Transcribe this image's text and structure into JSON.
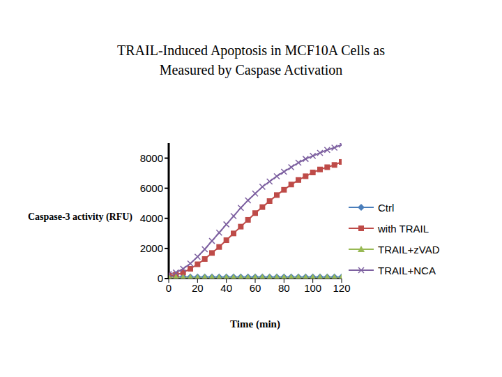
{
  "chart_data": {
    "type": "line",
    "title": "TRAIL-Induced Apoptosis in MCF10A Cells as Measured by Caspase Activation",
    "x_label": "Time (min)",
    "y_label": "Caspase-3 activity (RFU)",
    "x": [
      0,
      5,
      10,
      15,
      20,
      25,
      30,
      35,
      40,
      45,
      50,
      55,
      60,
      65,
      70,
      75,
      80,
      85,
      90,
      95,
      100,
      105,
      110,
      115,
      120
    ],
    "xlim": [
      0,
      120
    ],
    "xticks": [
      0,
      20,
      40,
      60,
      80,
      100,
      120
    ],
    "ylim": [
      0,
      9000
    ],
    "yticks": [
      0,
      2000,
      4000,
      6000,
      8000
    ],
    "grid": false,
    "legend": "right",
    "series": [
      {
        "name": "Ctrl",
        "color": "#4a7ebb",
        "marker": "diamond",
        "values": [
          150,
          130,
          120,
          110,
          110,
          100,
          100,
          110,
          100,
          100,
          110,
          100,
          100,
          110,
          100,
          110,
          100,
          110,
          100,
          110,
          110,
          100,
          110,
          100,
          110
        ]
      },
      {
        "name": "with TRAIL",
        "color": "#be4b48",
        "marker": "square",
        "values": [
          200,
          250,
          400,
          650,
          950,
          1300,
          1700,
          2100,
          2550,
          3000,
          3450,
          3900,
          4350,
          4750,
          5150,
          5550,
          5900,
          6250,
          6550,
          6800,
          7050,
          7250,
          7400,
          7550,
          7750
        ]
      },
      {
        "name": "TRAIL+zVAD",
        "color": "#98b954",
        "marker": "triangle",
        "values": [
          100,
          90,
          80,
          80,
          70,
          80,
          80,
          70,
          80,
          80,
          80,
          70,
          80,
          80,
          80,
          80,
          80,
          80,
          90,
          80,
          80,
          80,
          90,
          80,
          80
        ]
      },
      {
        "name": "TRAIL+NCA",
        "color": "#7d60a0",
        "marker": "cross",
        "values": [
          300,
          400,
          650,
          1000,
          1450,
          1950,
          2500,
          3050,
          3600,
          4150,
          4700,
          5200,
          5650,
          6100,
          6450,
          6800,
          7100,
          7400,
          7700,
          7950,
          8150,
          8350,
          8550,
          8700,
          8900
        ]
      }
    ]
  }
}
